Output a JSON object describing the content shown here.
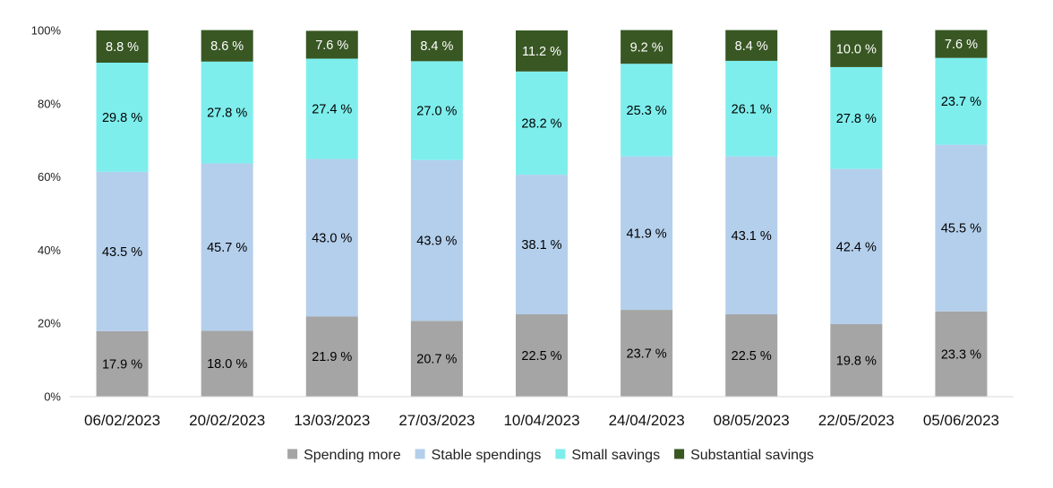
{
  "chart_data": {
    "type": "bar",
    "stacked": true,
    "title": "",
    "xlabel": "",
    "ylabel": "",
    "ylim": [
      0,
      100
    ],
    "y_ticks": [
      "0%",
      "20%",
      "40%",
      "60%",
      "80%",
      "100%"
    ],
    "grid": false,
    "legend_position": "bottom",
    "categories": [
      "06/02/2023",
      "20/02/2023",
      "13/03/2023",
      "27/03/2023",
      "10/04/2023",
      "24/04/2023",
      "08/05/2023",
      "22/05/2023",
      "05/06/2023"
    ],
    "series": [
      {
        "name": "Spending more",
        "color": "#a5a5a5",
        "label_color": "#000000",
        "values": [
          17.9,
          18.0,
          21.9,
          20.7,
          22.5,
          23.7,
          22.5,
          19.8,
          23.3
        ],
        "labels": [
          "17.9 %",
          "18.0 %",
          "21.9 %",
          "20.7 %",
          "22.5 %",
          "23.7 %",
          "22.5 %",
          "19.8 %",
          "23.3 %"
        ]
      },
      {
        "name": "Stable spendings",
        "color": "#b4cfec",
        "label_color": "#000000",
        "values": [
          43.5,
          45.7,
          43.0,
          43.9,
          38.1,
          41.9,
          43.1,
          42.4,
          45.5
        ],
        "labels": [
          "43.5 %",
          "45.7 %",
          "43.0 %",
          "43.9 %",
          "38.1 %",
          "41.9 %",
          "43.1 %",
          "42.4 %",
          "45.5 %"
        ]
      },
      {
        "name": "Small savings",
        "color": "#7eeeed",
        "label_color": "#000000",
        "values": [
          29.8,
          27.8,
          27.4,
          27.0,
          28.2,
          25.3,
          26.1,
          27.8,
          23.7
        ],
        "labels": [
          "29.8 %",
          "27.8 %",
          "27.4 %",
          "27.0 %",
          "28.2 %",
          "25.3 %",
          "26.1 %",
          "27.8 %",
          "23.7 %"
        ]
      },
      {
        "name": "Substantial savings",
        "color": "#385723",
        "label_color": "#ffffff",
        "values": [
          8.8,
          8.6,
          7.6,
          8.4,
          11.2,
          9.2,
          8.4,
          10.0,
          7.6
        ],
        "labels": [
          "8.8 %",
          "8.6 %",
          "7.6 %",
          "8.4 %",
          "11.2 %",
          "9.2 %",
          "8.4 %",
          "10.0 %",
          "7.6 %"
        ]
      }
    ]
  }
}
